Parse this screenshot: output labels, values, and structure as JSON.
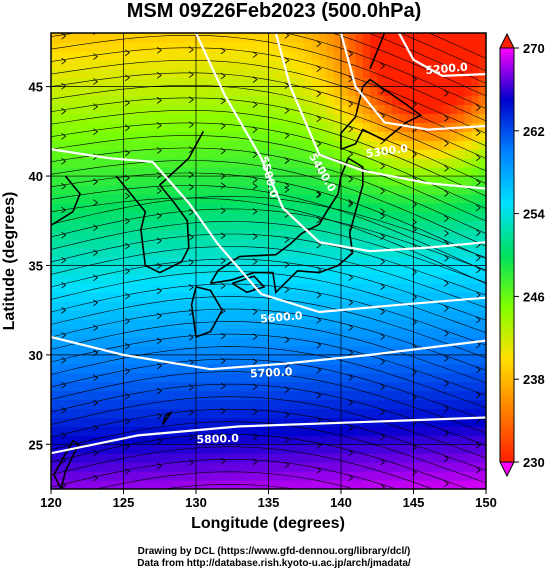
{
  "title": "MSM 09Z26Feb2023 (500.0hPa)",
  "x_axis": {
    "label": "Longitude (degrees)",
    "ticks": [
      120,
      125,
      130,
      135,
      140,
      145,
      150
    ],
    "range": [
      120,
      150
    ]
  },
  "y_axis": {
    "label": "Latitude  (degrees)",
    "ticks": [
      25,
      30,
      35,
      40,
      45
    ],
    "range": [
      22.5,
      48
    ]
  },
  "colorbar": {
    "ticks": [
      270,
      262,
      254,
      246,
      238,
      230
    ],
    "range": [
      230,
      270
    ],
    "colors": [
      "#ff00ff",
      "#0000cc",
      "#0080ff",
      "#00e0ff",
      "#00e060",
      "#80ff00",
      "#ffe000",
      "#ff8000",
      "#ff2000"
    ]
  },
  "contours": [
    {
      "label": "5200.0"
    },
    {
      "label": "5300.0"
    },
    {
      "label": "5400.0"
    },
    {
      "label": "5500.0"
    },
    {
      "label": "5600.0"
    },
    {
      "label": "5700.0"
    },
    {
      "label": "5800.0"
    }
  ],
  "credits": [
    "Drawing by DCL (https://www.gfd-dennou.org/library/dcl/)",
    "Data from http://database.rish.kyoto-u.ac.jp/arch/jmadata/"
  ]
}
